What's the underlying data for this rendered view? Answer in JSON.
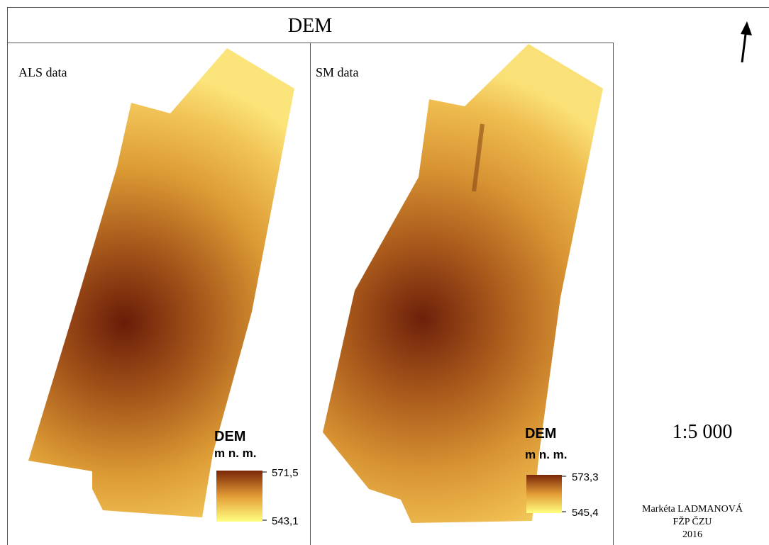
{
  "title": "DEM",
  "panels": [
    {
      "label": "ALS data",
      "legend_title": "DEM",
      "legend_unit": "m n. m.",
      "max_label": "571,5",
      "min_label": "543,1"
    },
    {
      "label": "SM data",
      "legend_title": "DEM",
      "legend_unit": "m n. m.",
      "max_label": "573,3",
      "min_label": "545,4"
    }
  ],
  "scale": "1:5 000",
  "author": [
    "Markéta LADMANOVÁ",
    "FŽP ČZU",
    "2016"
  ]
}
